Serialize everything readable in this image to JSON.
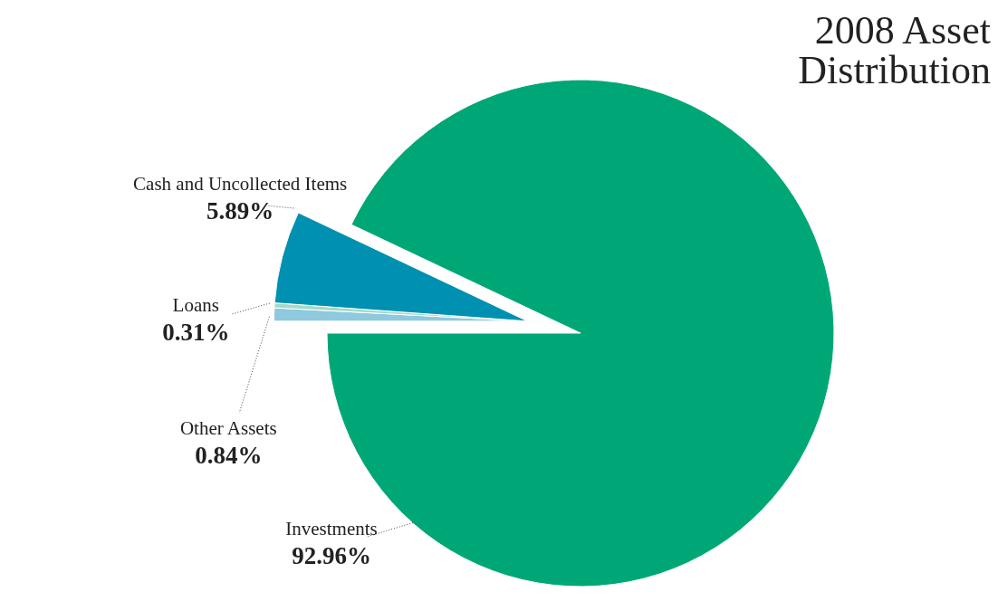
{
  "chart_data": {
    "type": "pie",
    "title": "2008 Asset Distribution",
    "categories": [
      "Other Assets",
      "Loans",
      "Cash and Uncollected Items",
      "Investments"
    ],
    "values": [
      0.84,
      0.31,
      5.89,
      92.96
    ],
    "value_labels": [
      "0.84%",
      "0.31%",
      "5.89%",
      "92.96%"
    ],
    "colors": [
      "#8ec9df",
      "#a3dac9",
      "#0090b1",
      "#00a776"
    ],
    "legend": false
  }
}
